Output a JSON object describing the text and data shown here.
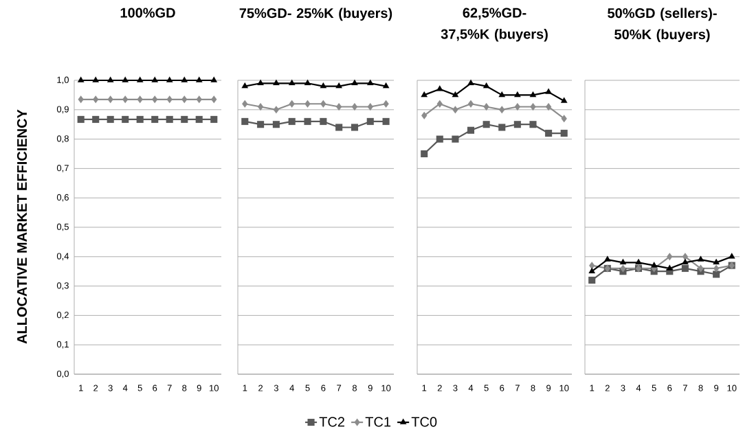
{
  "chart_data": [
    {
      "type": "line",
      "title": "100%GD",
      "ylabel": "ALLOCATIVE MARKET EFFICIENCY",
      "categories": [
        "1",
        "2",
        "3",
        "4",
        "5",
        "6",
        "7",
        "8",
        "9",
        "10"
      ],
      "ylim": [
        0,
        1
      ],
      "yticks": [
        {
          "value": 0,
          "label": "0,0"
        },
        {
          "value": 0.1,
          "label": "0,1"
        },
        {
          "value": 0.2,
          "label": "0,2"
        },
        {
          "value": 0.3,
          "label": "0,3"
        },
        {
          "value": 0.4,
          "label": "0,4"
        },
        {
          "value": 0.5,
          "label": "0,5"
        },
        {
          "value": 0.6,
          "label": "0,6"
        },
        {
          "value": 0.7,
          "label": "0,7"
        },
        {
          "value": 0.8,
          "label": "0,8"
        },
        {
          "value": 0.9,
          "label": "0,9"
        },
        {
          "value": 1,
          "label": "1,0"
        }
      ],
      "grid": "y",
      "series": [
        {
          "color": "#595959",
          "marker": "square",
          "values": [
            0.867,
            0.867,
            0.867,
            0.867,
            0.867,
            0.867,
            0.867,
            0.867,
            0.867,
            0.867
          ]
        },
        {
          "color": "#8c8c8c",
          "marker": "diamond",
          "values": [
            0.935,
            0.935,
            0.935,
            0.935,
            0.935,
            0.935,
            0.935,
            0.935,
            0.935,
            0.935
          ]
        },
        {
          "color": "#000000",
          "marker": "triangle",
          "values": [
            1.0,
            1.0,
            1.0,
            1.0,
            1.0,
            1.0,
            1.0,
            1.0,
            1.0,
            1.0
          ]
        }
      ]
    },
    {
      "type": "line",
      "title": "75%GD- 25%K (buyers)",
      "categories": [
        "1",
        "2",
        "3",
        "4",
        "5",
        "6",
        "7",
        "8",
        "9",
        "10"
      ],
      "ylim": [
        0,
        1
      ],
      "yticks": [
        0,
        0.1,
        0.2,
        0.3,
        0.4,
        0.5,
        0.6,
        0.7,
        0.8,
        0.9,
        1
      ],
      "grid": "y",
      "tick_labels": "x",
      "series": [
        {
          "color": "#595959",
          "marker": "square",
          "values": [
            0.86,
            0.85,
            0.85,
            0.86,
            0.86,
            0.86,
            0.84,
            0.84,
            0.86,
            0.86
          ]
        },
        {
          "color": "#8c8c8c",
          "marker": "diamond",
          "values": [
            0.92,
            0.91,
            0.9,
            0.92,
            0.92,
            0.92,
            0.91,
            0.91,
            0.91,
            0.92
          ]
        },
        {
          "color": "#000000",
          "marker": "triangle",
          "values": [
            0.98,
            0.99,
            0.99,
            0.99,
            0.99,
            0.98,
            0.98,
            0.99,
            0.99,
            0.98
          ]
        }
      ]
    },
    {
      "type": "line",
      "title": "62,5%GD- 37,5%K (buyers)",
      "categories": [
        "1",
        "2",
        "3",
        "4",
        "5",
        "6",
        "7",
        "8",
        "9",
        "10"
      ],
      "ylim": [
        0,
        1
      ],
      "yticks": [
        0,
        0.1,
        0.2,
        0.3,
        0.4,
        0.5,
        0.6,
        0.7,
        0.8,
        0.9,
        1
      ],
      "grid": "y",
      "tick_labels": "x",
      "legend": "bottom",
      "series": [
        {
          "name": "TC2",
          "color": "#595959",
          "marker": "square",
          "values": [
            0.75,
            0.8,
            0.8,
            0.83,
            0.85,
            0.84,
            0.85,
            0.85,
            0.82,
            0.82
          ]
        },
        {
          "name": "TC1",
          "color": "#8c8c8c",
          "marker": "diamond",
          "values": [
            0.88,
            0.92,
            0.9,
            0.92,
            0.91,
            0.9,
            0.91,
            0.91,
            0.91,
            0.87
          ]
        },
        {
          "name": "TC0",
          "color": "#000000",
          "marker": "triangle",
          "values": [
            0.95,
            0.97,
            0.95,
            0.99,
            0.98,
            0.95,
            0.95,
            0.95,
            0.96,
            0.93
          ]
        }
      ]
    },
    {
      "type": "line",
      "title": "50%GD (sellers)- 50%K (buyers)",
      "categories": [
        "1",
        "2",
        "3",
        "4",
        "5",
        "6",
        "7",
        "8",
        "9",
        "10"
      ],
      "ylim": [
        0,
        1
      ],
      "yticks": [
        0,
        0.1,
        0.2,
        0.3,
        0.4,
        0.5,
        0.6,
        0.7,
        0.8,
        0.9,
        1
      ],
      "grid": "y",
      "tick_labels": "x",
      "series": [
        {
          "color": "#595959",
          "marker": "square",
          "values": [
            0.32,
            0.36,
            0.35,
            0.36,
            0.35,
            0.35,
            0.36,
            0.35,
            0.34,
            0.37
          ]
        },
        {
          "color": "#8c8c8c",
          "marker": "diamond",
          "values": [
            0.37,
            0.36,
            0.36,
            0.36,
            0.36,
            0.4,
            0.4,
            0.36,
            0.36,
            0.37
          ]
        },
        {
          "color": "#000000",
          "marker": "triangle",
          "values": [
            0.35,
            0.39,
            0.38,
            0.38,
            0.37,
            0.36,
            0.38,
            0.39,
            0.38,
            0.4
          ]
        }
      ]
    }
  ]
}
